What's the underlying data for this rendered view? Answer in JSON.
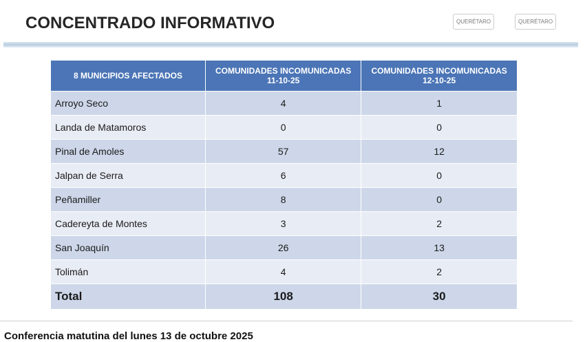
{
  "header": {
    "title": "CONCENTRADO INFORMATIVO",
    "logos": [
      "QUERÉTARO",
      "QUERÉTARO"
    ]
  },
  "table": {
    "columns": [
      "8 MUNICIPIOS AFECTADOS",
      "COMUNIDADES INCOMUNICADAS 11-10-25",
      "COMUNIDADES INCOMUNICADAS 12-10-25"
    ],
    "rows": [
      [
        "Arroyo Seco",
        4,
        1
      ],
      [
        "Landa de Matamoros",
        0,
        0
      ],
      [
        "Pinal de Amoles",
        57,
        12
      ],
      [
        "Jalpan de Serra",
        6,
        0
      ],
      [
        "Peñamiller",
        8,
        0
      ],
      [
        "Cadereyta de Montes",
        3,
        2
      ],
      [
        "San Joaquín",
        26,
        13
      ],
      [
        "Tolimán",
        4,
        2
      ]
    ],
    "total": [
      "Total",
      108,
      30
    ]
  },
  "footer": {
    "caption": "Conferencia matutina del lunes 13 de octubre 2025"
  }
}
